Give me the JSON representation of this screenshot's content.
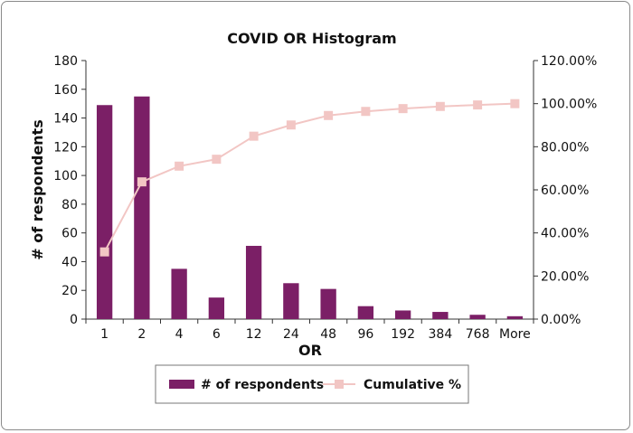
{
  "chart_data": {
    "type": "bar",
    "title": "COVID OR Histogram",
    "xlabel": "OR",
    "ylabel": "# of respondents",
    "categories": [
      "1",
      "2",
      "4",
      "6",
      "12",
      "24",
      "48",
      "96",
      "192",
      "384",
      "768",
      "More"
    ],
    "series": [
      {
        "name": "# of respondents",
        "type": "bar",
        "axis": "left",
        "color": "#7b1f66",
        "values": [
          149,
          155,
          35,
          15,
          51,
          25,
          21,
          9,
          6,
          5,
          3,
          2
        ]
      },
      {
        "name": "Cumulative %",
        "type": "line",
        "axis": "right",
        "color": "#f2c6c4",
        "values": [
          31.2,
          63.7,
          71.0,
          74.2,
          84.9,
          90.1,
          94.5,
          96.4,
          97.7,
          98.7,
          99.4,
          100.0
        ]
      }
    ],
    "ylim": [
      0,
      180
    ],
    "yticks": [
      "0",
      "20",
      "40",
      "60",
      "80",
      "100",
      "120",
      "140",
      "160",
      "180"
    ],
    "y2lim": [
      0,
      120
    ],
    "y2ticks": [
      "0.00%",
      "20.00%",
      "40.00%",
      "60.00%",
      "80.00%",
      "100.00%",
      "120.00%"
    ],
    "grid": false,
    "legend_position": "bottom"
  }
}
